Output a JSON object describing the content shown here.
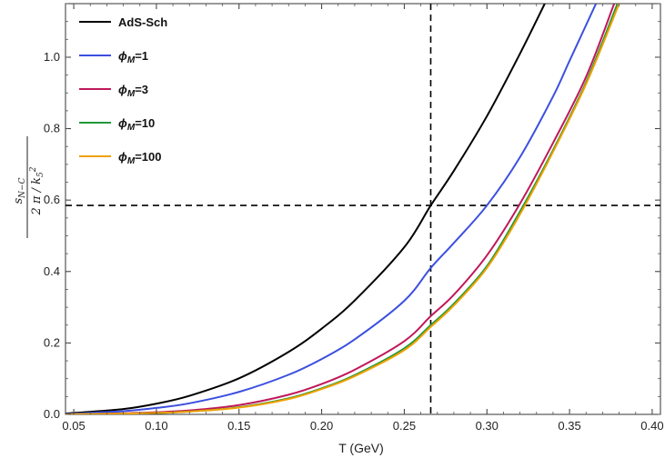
{
  "chart_data": {
    "type": "line",
    "title": "",
    "xlabel": "T (GeV)",
    "ylabel": "s_{N-C} / (2π / k_5^2)",
    "xlim": [
      0.045,
      0.405
    ],
    "ylim": [
      0,
      1.15
    ],
    "xticks": [
      "0.05",
      "0.10",
      "0.15",
      "0.20",
      "0.25",
      "0.30",
      "0.35",
      "0.40"
    ],
    "yticks": [
      "0.0",
      "0.2",
      "0.4",
      "0.6",
      "0.8",
      "1.0"
    ],
    "grid": false,
    "legend_position": "top-left",
    "reference_lines": {
      "vertical_x": 0.266,
      "horizontal_y": 0.585
    },
    "series": [
      {
        "name": "AdS-Sch",
        "color": "#000000",
        "x": [
          0.045,
          0.05,
          0.08,
          0.1,
          0.12,
          0.15,
          0.18,
          0.2,
          0.22,
          0.25,
          0.266,
          0.28,
          0.3,
          0.32,
          0.335
        ],
        "y": [
          0.002,
          0.004,
          0.015,
          0.03,
          0.052,
          0.101,
          0.175,
          0.24,
          0.319,
          0.468,
          0.585,
          0.682,
          0.835,
          1.01,
          1.15
        ]
      },
      {
        "name": "ϕ_M=1",
        "color": "#3b4fe0",
        "x": [
          0.045,
          0.05,
          0.08,
          0.1,
          0.12,
          0.15,
          0.18,
          0.2,
          0.22,
          0.25,
          0.266,
          0.28,
          0.3,
          0.32,
          0.34,
          0.35,
          0.366
        ],
        "y": [
          0.001,
          0.002,
          0.009,
          0.018,
          0.031,
          0.063,
          0.111,
          0.155,
          0.21,
          0.318,
          0.41,
          0.48,
          0.585,
          0.72,
          0.89,
          0.99,
          1.15
        ]
      },
      {
        "name": "ϕ_M=3",
        "color": "#c0185a",
        "x": [
          0.045,
          0.05,
          0.08,
          0.1,
          0.12,
          0.15,
          0.18,
          0.2,
          0.22,
          0.25,
          0.266,
          0.28,
          0.3,
          0.32,
          0.34,
          0.36,
          0.377
        ],
        "y": [
          0.0,
          0.0003,
          0.003,
          0.006,
          0.011,
          0.026,
          0.055,
          0.085,
          0.125,
          0.205,
          0.275,
          0.335,
          0.445,
          0.59,
          0.76,
          0.945,
          1.15
        ]
      },
      {
        "name": "ϕ_M=10",
        "color": "#1f9a3a",
        "x": [
          0.045,
          0.05,
          0.08,
          0.1,
          0.12,
          0.15,
          0.18,
          0.2,
          0.22,
          0.25,
          0.266,
          0.28,
          0.3,
          0.32,
          0.34,
          0.36,
          0.379
        ],
        "y": [
          0.0,
          0.0002,
          0.002,
          0.004,
          0.008,
          0.02,
          0.045,
          0.073,
          0.11,
          0.185,
          0.25,
          0.31,
          0.415,
          0.568,
          0.74,
          0.93,
          1.15
        ]
      },
      {
        "name": "ϕ_M=100",
        "color": "#f0a000",
        "x": [
          0.045,
          0.05,
          0.08,
          0.1,
          0.12,
          0.15,
          0.18,
          0.2,
          0.22,
          0.25,
          0.266,
          0.28,
          0.3,
          0.32,
          0.34,
          0.36,
          0.38
        ],
        "y": [
          0.0,
          0.0002,
          0.002,
          0.004,
          0.008,
          0.019,
          0.043,
          0.071,
          0.107,
          0.18,
          0.245,
          0.305,
          0.41,
          0.56,
          0.735,
          0.925,
          1.15
        ]
      }
    ]
  }
}
